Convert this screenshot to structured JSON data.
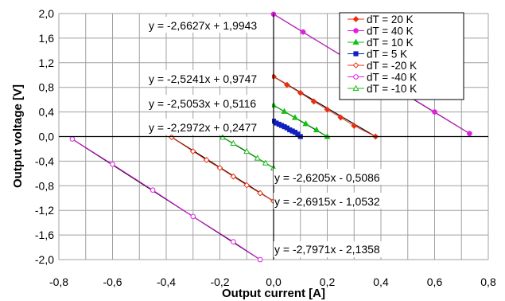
{
  "chart_data": {
    "type": "scatter",
    "xlabel": "Output current [A]",
    "ylabel": "Output voltage [V]",
    "xlim": [
      -0.8,
      0.8
    ],
    "ylim": [
      -2.0,
      2.0
    ],
    "x_ticks": [
      "-0,8",
      "-0,6",
      "-0,4",
      "-0,2",
      "0,0",
      "0,2",
      "0,4",
      "0,6",
      "0,8"
    ],
    "y_ticks": [
      "2,0",
      "1,6",
      "1,2",
      "0,8",
      "0,4",
      "0,0",
      "-0,4",
      "-0,8",
      "-1,2",
      "-1,6",
      "-2,0"
    ],
    "grid": true,
    "legend_position": "top-right",
    "series": [
      {
        "name": "dT = 20 K",
        "color": "#e83010",
        "marker": "diamond",
        "fill": true,
        "x": [
          0.0,
          0.05,
          0.1,
          0.15,
          0.2,
          0.25,
          0.3,
          0.38
        ],
        "y": [
          0.975,
          0.84,
          0.71,
          0.57,
          0.44,
          0.31,
          0.175,
          0.0
        ]
      },
      {
        "name": "dT = 40 K",
        "color": "#e020e0",
        "marker": "circle",
        "fill": true,
        "x": [
          0.0,
          0.11,
          0.27,
          0.45,
          0.6,
          0.73
        ],
        "y": [
          1.99,
          1.7,
          1.27,
          0.8,
          0.4,
          0.05
        ]
      },
      {
        "name": "dT = 10 K",
        "color": "#10c010",
        "marker": "triangle",
        "fill": true,
        "x": [
          0.0,
          0.04,
          0.08,
          0.12,
          0.16,
          0.2
        ],
        "y": [
          0.51,
          0.41,
          0.31,
          0.21,
          0.11,
          0.0
        ]
      },
      {
        "name": "dT = 5 K",
        "color": "#1020c0",
        "marker": "square",
        "fill": true,
        "x": [
          0.0,
          0.01,
          0.02,
          0.03,
          0.04,
          0.05,
          0.06,
          0.07,
          0.08,
          0.09,
          0.1
        ],
        "y": [
          0.25,
          0.22,
          0.2,
          0.18,
          0.16,
          0.14,
          0.11,
          0.09,
          0.07,
          0.04,
          0.0
        ]
      },
      {
        "name": "dT = -20 K",
        "color": "#e83010",
        "marker": "diamond",
        "fill": false,
        "x": [
          -0.38,
          -0.3,
          -0.25,
          -0.2,
          -0.15,
          -0.1,
          -0.05,
          0.0
        ],
        "y": [
          -0.01,
          -0.24,
          -0.38,
          -0.51,
          -0.65,
          -0.79,
          -0.92,
          -1.05
        ]
      },
      {
        "name": "dT = -40 K",
        "color": "#e020e0",
        "marker": "circle",
        "fill": false,
        "x": [
          -0.75,
          -0.6,
          -0.45,
          -0.3,
          -0.15,
          -0.05
        ],
        "y": [
          -0.04,
          -0.45,
          -0.87,
          -1.3,
          -1.71,
          -2.0
        ]
      },
      {
        "name": "dT = -10 K",
        "color": "#10c010",
        "marker": "triangle",
        "fill": false,
        "x": [
          -0.19,
          -0.15,
          -0.1,
          -0.06,
          -0.03,
          0.0
        ],
        "y": [
          -0.01,
          -0.11,
          -0.24,
          -0.35,
          -0.43,
          -0.51
        ]
      }
    ],
    "annotations": [
      "y = -2,6627x + 1,9943",
      "y = -2,5241x + 0,9747",
      "y = -2,5053x + 0,5116",
      "y = -2,2972x + 0,2477",
      "y = -2,6205x - 0,5086",
      "y = -2,6915x - 1,0532",
      "y = -2,7971x - 2,1358"
    ]
  }
}
